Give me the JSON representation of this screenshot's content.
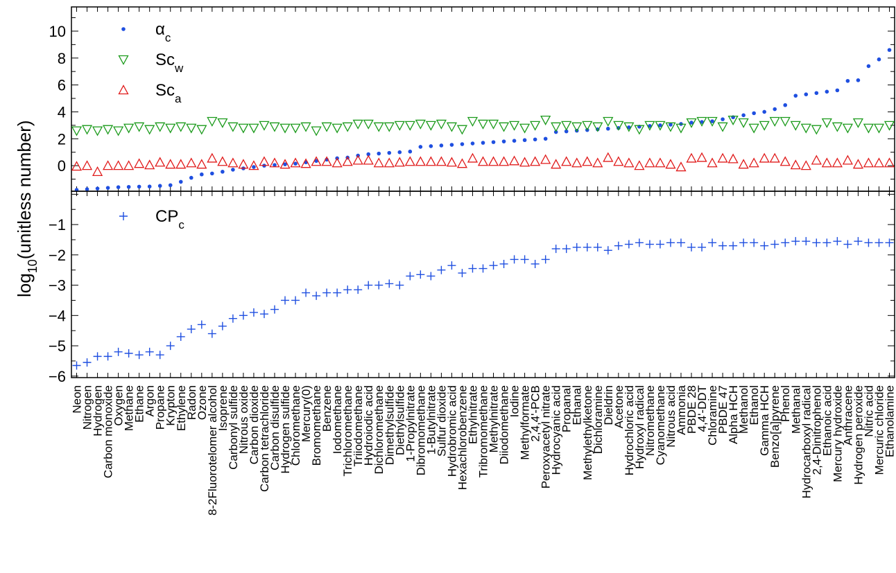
{
  "chart_data": [
    {
      "type": "scatter",
      "ylabel": "log",
      "ylabel_sub": "10",
      "ylabel_rest": "(unitless number)",
      "ylim": [
        -1.9,
        11.8
      ],
      "yticks": [
        0,
        2,
        4,
        6,
        8,
        10
      ],
      "legend": "top-left",
      "categories": [
        "Neon",
        "Nitrogen",
        "Hydrogen",
        "Carbon monoxide",
        "Oxygen",
        "Methane",
        "Ethane",
        "Argon",
        "Propane",
        "Krypton",
        "Ethylene",
        "Radon",
        "Ozone",
        "8-2Fluorotelomer alcohol",
        "Isoprene",
        "Carbonyl sulfide",
        "Nitrous oxide",
        "Carbon dioxide",
        "Carbon tetrachloride",
        "Carbon disulfide",
        "Hydrogen sulfide",
        "Chloromethane",
        "Mercury(0)",
        "Bromomethane",
        "Benzene",
        "Iodomethane",
        "Trichloromethane",
        "Triiodomethane",
        "Hydroiodic acid",
        "Dichloromethane",
        "Dimethylsulfide",
        "Diethylsulfide",
        "1-Propylnitrate",
        "Dibromomethane",
        "1-Butylnitrate",
        "Sulfur dioxide",
        "Hydrobromic acid",
        "Hexachlorobenzene",
        "Ethylnitrate",
        "Tribromomethane",
        "Methylnitrate",
        "Diiodomethane",
        "Iodine",
        "Methylformate",
        "2,4,4'-PCB",
        "Peroxyacetyl nitrate",
        "Hydrocyanic acid",
        "Propanal",
        "Ethanal",
        "Methylethylketone",
        "Dichloramine",
        "Dieldrin",
        "Acetone",
        "Hydrochloric acid",
        "Hydroxyl radical",
        "Nitromethane",
        "Cyanomethane",
        "Nitrous acid",
        "Ammonia",
        "PBDE 28",
        "4,4'-DDT",
        "Chloramine",
        "PBDE 47",
        "Alpha HCH",
        "Methanol",
        "Ethanol",
        "Gamma HCH",
        "Benzo[a]pyrene",
        "Phenol",
        "Methanal",
        "Hydrocarboxyl radical",
        "2,4-Dinitrophenol",
        "Ethanoic acid",
        "Mercury hydroxide",
        "Anthracene",
        "Hydrogen peroxide",
        "Nitric acid",
        "Mercuric chloride",
        "Ethanolamine"
      ],
      "series": [
        {
          "name": "α",
          "name_sub": "c",
          "marker": "dot",
          "color": "#1f4fe0",
          "values": [
            -1.8,
            -1.75,
            -1.7,
            -1.65,
            -1.6,
            -1.58,
            -1.56,
            -1.55,
            -1.5,
            -1.45,
            -1.2,
            -0.9,
            -0.65,
            -0.58,
            -0.45,
            -0.3,
            -0.2,
            -0.1,
            0.0,
            0.05,
            0.1,
            0.15,
            0.25,
            0.35,
            0.45,
            0.55,
            0.6,
            0.75,
            0.85,
            0.9,
            0.95,
            1.0,
            1.05,
            1.4,
            1.45,
            1.5,
            1.55,
            1.6,
            1.65,
            1.7,
            1.75,
            1.8,
            1.85,
            1.9,
            1.95,
            2.0,
            2.5,
            2.55,
            2.6,
            2.65,
            2.7,
            2.75,
            2.8,
            2.85,
            2.9,
            2.95,
            3.0,
            3.05,
            3.1,
            3.2,
            3.25,
            3.3,
            3.45,
            3.6,
            3.75,
            3.9,
            4.0,
            4.2,
            4.5,
            5.2,
            5.3,
            5.4,
            5.5,
            5.6,
            6.3,
            6.35,
            7.4,
            7.9,
            8.6
          ]
        },
        {
          "name": "Sc",
          "name_sub": "w",
          "marker": "triangle-down",
          "color": "#1a9a1a",
          "values": [
            2.6,
            2.7,
            2.6,
            2.7,
            2.6,
            2.8,
            2.9,
            2.7,
            2.9,
            2.8,
            2.9,
            2.8,
            2.7,
            3.3,
            3.2,
            2.9,
            2.8,
            2.8,
            3.0,
            2.9,
            2.8,
            2.8,
            2.9,
            2.6,
            2.9,
            2.8,
            2.9,
            3.1,
            3.1,
            2.9,
            2.9,
            3.0,
            3.0,
            3.1,
            3.0,
            3.1,
            2.9,
            2.7,
            3.3,
            3.1,
            3.1,
            2.9,
            3.0,
            2.8,
            3.0,
            3.4,
            2.9,
            3.0,
            2.9,
            3.0,
            2.9,
            3.3,
            3.0,
            2.9,
            2.7,
            3.0,
            3.0,
            2.9,
            2.8,
            3.2,
            3.3,
            3.3,
            2.9,
            3.4,
            3.2,
            2.8,
            3.0,
            3.3,
            3.3,
            3.0,
            2.8,
            2.7,
            3.2,
            2.9,
            2.8,
            3.2,
            2.8,
            2.8,
            3.0
          ]
        },
        {
          "name": "Sc",
          "name_sub": "a",
          "marker": "triangle-up",
          "color": "#e01a1a",
          "values": [
            -0.05,
            0.0,
            -0.45,
            0.0,
            0.0,
            0.0,
            0.15,
            0.05,
            0.25,
            0.1,
            0.1,
            0.2,
            0.1,
            0.55,
            0.3,
            0.2,
            0.1,
            0.0,
            0.3,
            0.2,
            0.1,
            0.2,
            0.15,
            0.3,
            0.3,
            0.2,
            0.3,
            0.4,
            0.4,
            0.2,
            0.2,
            0.25,
            0.3,
            0.3,
            0.3,
            0.3,
            0.25,
            0.15,
            0.55,
            0.3,
            0.3,
            0.3,
            0.35,
            0.25,
            0.3,
            0.45,
            0.1,
            0.3,
            0.2,
            0.3,
            0.2,
            0.6,
            0.3,
            0.2,
            0.0,
            0.2,
            0.2,
            0.1,
            -0.1,
            0.55,
            0.6,
            0.2,
            0.55,
            0.5,
            0.1,
            0.2,
            0.55,
            0.55,
            0.3,
            0.05,
            0.0,
            0.4,
            0.2,
            0.2,
            0.4,
            0.1,
            0.2,
            0.2,
            0.2
          ]
        }
      ]
    },
    {
      "type": "scatter",
      "ylim": [
        -6.05,
        0.1
      ],
      "yticks": [
        -6,
        -5,
        -4,
        -3,
        -2,
        -1
      ],
      "legend": "top-left",
      "series": [
        {
          "name": "CP",
          "name_sub": "c",
          "marker": "plus",
          "color": "#1f4fe0",
          "values": [
            -5.65,
            -5.55,
            -5.35,
            -5.35,
            -5.2,
            -5.25,
            -5.3,
            -5.2,
            -5.3,
            -5.0,
            -4.7,
            -4.45,
            -4.3,
            -4.6,
            -4.35,
            -4.1,
            -4.0,
            -3.9,
            -3.95,
            -3.8,
            -3.5,
            -3.5,
            -3.25,
            -3.35,
            -3.25,
            -3.25,
            -3.15,
            -3.15,
            -3.0,
            -3.0,
            -2.95,
            -3.0,
            -2.7,
            -2.65,
            -2.7,
            -2.5,
            -2.35,
            -2.6,
            -2.45,
            -2.45,
            -2.35,
            -2.3,
            -2.15,
            -2.15,
            -2.3,
            -2.15,
            -1.8,
            -1.8,
            -1.75,
            -1.75,
            -1.75,
            -1.85,
            -1.7,
            -1.65,
            -1.6,
            -1.65,
            -1.65,
            -1.6,
            -1.6,
            -1.75,
            -1.75,
            -1.6,
            -1.7,
            -1.7,
            -1.6,
            -1.6,
            -1.7,
            -1.65,
            -1.6,
            -1.55,
            -1.55,
            -1.6,
            -1.6,
            -1.55,
            -1.65,
            -1.55,
            -1.6,
            -1.6,
            -1.6
          ]
        }
      ]
    }
  ]
}
